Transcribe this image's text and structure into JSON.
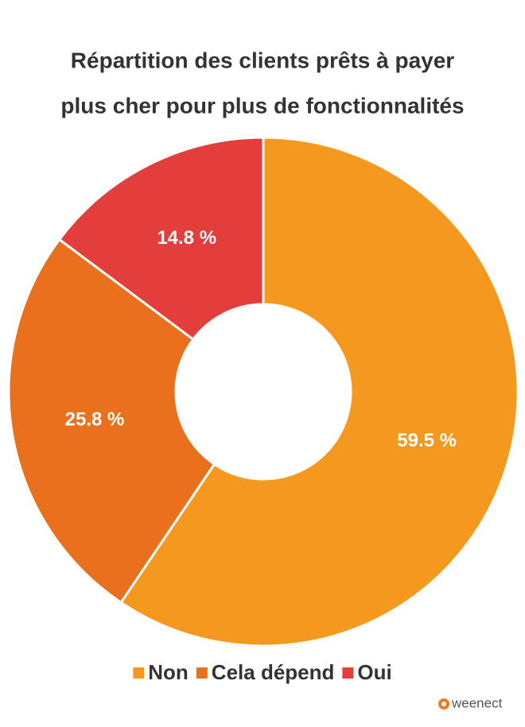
{
  "chart_data": {
    "type": "donut",
    "title": [
      "Répartition des clients prêts à payer",
      "plus cher pour plus de fonctionnalités"
    ],
    "categories": [
      "Non",
      "Cela dépend",
      "Oui"
    ],
    "values": [
      59.5,
      25.8,
      14.8
    ],
    "value_labels": [
      "59.5 %",
      "25.8 %",
      "14.8 %"
    ],
    "colors": [
      "#f4991e",
      "#e9701d",
      "#e33d3c"
    ],
    "legend": "bottom",
    "watermark": "weenect"
  }
}
